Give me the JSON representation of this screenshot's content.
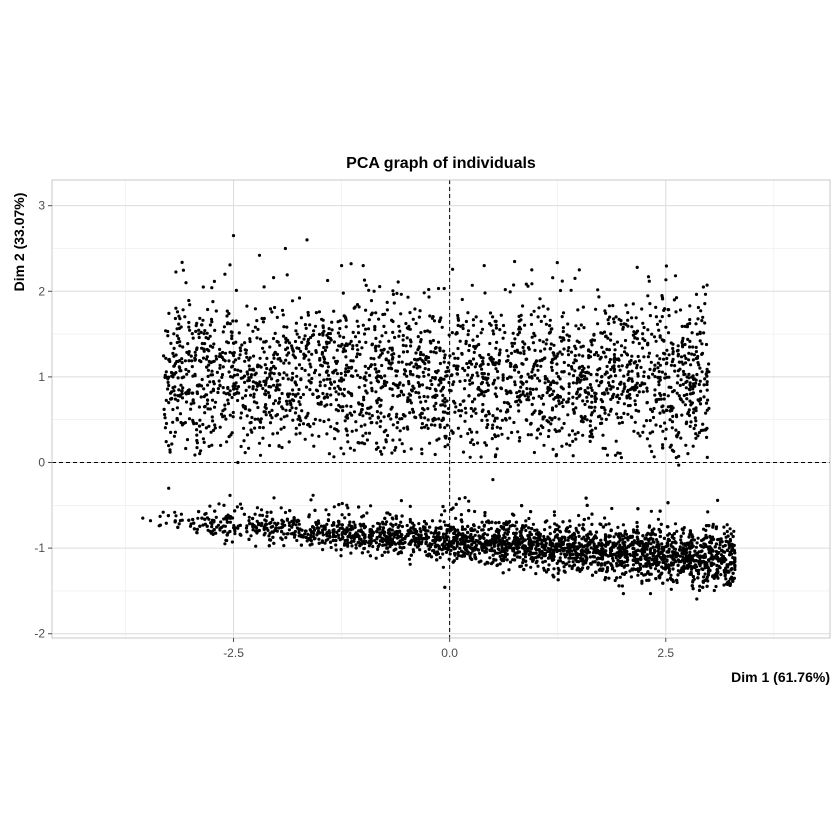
{
  "chart_data": {
    "type": "scatter",
    "title": "PCA graph of individuals",
    "xlabel": "Dim 1 (61.76%)",
    "ylabel": "Dim 2 (33.07%)",
    "xlim": [
      -4.6,
      4.4
    ],
    "ylim": [
      -2.05,
      3.3
    ],
    "x_ticks": [
      -2.5,
      0,
      2.5
    ],
    "x_tick_labels": [
      "-2.5",
      "0.0",
      "2.5"
    ],
    "y_ticks": [
      -2,
      -1,
      0,
      1,
      2,
      3
    ],
    "y_tick_labels": [
      "-2",
      "-1",
      "0",
      "1",
      "2",
      "3"
    ],
    "grid": true,
    "reference_lines": {
      "x": 0,
      "y": 0,
      "style": "dashed"
    },
    "marker_color": "#000000",
    "clusters": [
      {
        "name": "",
        "description": "upper cluster",
        "x_range": [
          -3.3,
          3.0
        ],
        "y_center": 1.0,
        "y_spread": 0.45,
        "approx_count": 2600
      },
      {
        "name": "",
        "description": "lower elongated band",
        "x_range": [
          -3.5,
          3.3
        ],
        "y_at_x_min": -0.68,
        "y_at_x_max": -1.15,
        "y_spread": 0.08,
        "approx_count": 3400
      }
    ],
    "series": [
      {
        "name": "",
        "points": [
          [
            -2.5,
            2.65
          ],
          [
            -1.65,
            2.6
          ],
          [
            -2.2,
            2.42
          ],
          [
            -1.9,
            2.5
          ],
          [
            -2.6,
            2.2
          ],
          [
            -3.05,
            2.1
          ],
          [
            -2.85,
            2.05
          ],
          [
            -1.25,
            2.3
          ],
          [
            -1.0,
            2.3
          ],
          [
            0.4,
            2.3
          ],
          [
            0.95,
            2.25
          ],
          [
            1.5,
            2.25
          ],
          [
            1.45,
            2.15
          ],
          [
            1.45,
            1.2
          ],
          [
            2.3,
            2.17
          ],
          [
            2.6,
            1.9
          ],
          [
            2.95,
            1.63
          ],
          [
            2.85,
            1.62
          ],
          [
            2.7,
            1.45
          ],
          [
            -3.2,
            1.0
          ],
          [
            -3.25,
            1.2
          ],
          [
            -3.25,
            0.9
          ],
          [
            -3.25,
            0.7
          ],
          [
            -3.15,
            0.5
          ],
          [
            2.9,
            0.95
          ],
          [
            2.55,
            0.5
          ],
          [
            2.65,
            0.35
          ],
          [
            2.63,
            0.3
          ],
          [
            -2.65,
            0.2
          ],
          [
            -2.45,
            0.0
          ],
          [
            0.5,
            -0.2
          ],
          [
            2.65,
            -0.03
          ],
          [
            -3.25,
            -0.3
          ],
          [
            -3.35,
            -0.63
          ],
          [
            -3.55,
            -0.65
          ],
          [
            3.1,
            -0.9
          ],
          [
            3.3,
            -1.25
          ],
          [
            2.95,
            -1.38
          ],
          [
            -2.6,
            -0.95
          ],
          [
            -2.75,
            -0.72
          ]
        ]
      }
    ]
  }
}
